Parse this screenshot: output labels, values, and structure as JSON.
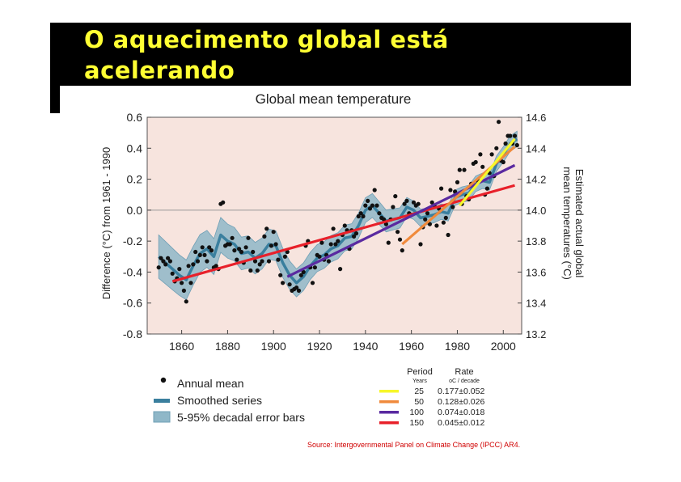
{
  "slide": {
    "title_line1": "O aquecimento global está",
    "title_line2": "acelerando",
    "source": "Source: Intergovernmental Panel on Climate Change (IPCC) AR4."
  },
  "chart_data": {
    "type": "scatter",
    "title": "Global mean temperature",
    "xlabel": "",
    "ylabel": "Difference (°C) from 1961 - 1990",
    "y2label_line1": "Estimated actual global",
    "y2label_line2": "mean temperatures (°C)",
    "xlim": [
      1845,
      2008
    ],
    "ylim": [
      -0.8,
      0.6
    ],
    "y2lim": [
      13.2,
      14.6
    ],
    "x_ticks": [
      1860,
      1880,
      1900,
      1920,
      1940,
      1960,
      1980,
      2000
    ],
    "y_ticks": [
      -0.8,
      -0.6,
      -0.4,
      -0.2,
      0.0,
      0.2,
      0.4,
      0.6
    ],
    "y_tick_labels": [
      "-0.8",
      "-0.6",
      "-0.4",
      "-0.2",
      "0.0",
      "0.2",
      "0.4",
      "0.6"
    ],
    "y2_ticks": [
      13.2,
      13.4,
      13.6,
      13.8,
      14.0,
      14.2,
      14.4,
      14.6
    ],
    "y2_tick_labels": [
      "13.2",
      "13.4",
      "13.6",
      "13.8",
      "14.0",
      "14.2",
      "14.4",
      "14.6"
    ],
    "zero_line": true,
    "colors": {
      "background": "#f7e4de",
      "points": "#111111",
      "smooth": "#3a7f9e",
      "band": "#8fb7c8",
      "band_edge": "#6f9fb5"
    },
    "annual_mean": {
      "name": "Annual mean",
      "x": [
        1850,
        1851,
        1852,
        1853,
        1854,
        1855,
        1856,
        1857,
        1858,
        1859,
        1860,
        1861,
        1862,
        1863,
        1864,
        1865,
        1866,
        1867,
        1868,
        1869,
        1870,
        1871,
        1872,
        1873,
        1874,
        1875,
        1876,
        1877,
        1878,
        1879,
        1880,
        1881,
        1882,
        1883,
        1884,
        1885,
        1886,
        1887,
        1888,
        1889,
        1890,
        1891,
        1892,
        1893,
        1894,
        1895,
        1896,
        1897,
        1898,
        1899,
        1900,
        1901,
        1902,
        1903,
        1904,
        1905,
        1906,
        1907,
        1908,
        1909,
        1910,
        1911,
        1912,
        1913,
        1914,
        1915,
        1916,
        1917,
        1918,
        1919,
        1920,
        1921,
        1922,
        1923,
        1924,
        1925,
        1926,
        1927,
        1928,
        1929,
        1930,
        1931,
        1932,
        1933,
        1934,
        1935,
        1936,
        1937,
        1938,
        1939,
        1940,
        1941,
        1942,
        1943,
        1944,
        1945,
        1946,
        1947,
        1948,
        1949,
        1950,
        1951,
        1952,
        1953,
        1954,
        1955,
        1956,
        1957,
        1958,
        1959,
        1960,
        1961,
        1962,
        1963,
        1964,
        1965,
        1966,
        1967,
        1968,
        1969,
        1970,
        1971,
        1972,
        1973,
        1974,
        1975,
        1976,
        1977,
        1978,
        1979,
        1980,
        1981,
        1982,
        1983,
        1984,
        1985,
        1986,
        1987,
        1988,
        1989,
        1990,
        1991,
        1992,
        1993,
        1994,
        1995,
        1996,
        1997,
        1998,
        1999,
        2000,
        2001,
        2002,
        2003,
        2004,
        2005,
        2006
      ],
      "y": [
        -0.37,
        -0.31,
        -0.33,
        -0.35,
        -0.31,
        -0.33,
        -0.41,
        -0.46,
        -0.44,
        -0.38,
        -0.47,
        -0.52,
        -0.59,
        -0.36,
        -0.47,
        -0.35,
        -0.27,
        -0.33,
        -0.29,
        -0.24,
        -0.29,
        -0.33,
        -0.24,
        -0.26,
        -0.37,
        -0.36,
        -0.38,
        0.04,
        0.05,
        -0.23,
        -0.22,
        -0.22,
        -0.18,
        -0.26,
        -0.32,
        -0.25,
        -0.27,
        -0.34,
        -0.24,
        -0.18,
        -0.39,
        -0.27,
        -0.33,
        -0.39,
        -0.35,
        -0.33,
        -0.17,
        -0.12,
        -0.33,
        -0.23,
        -0.14,
        -0.22,
        -0.32,
        -0.42,
        -0.47,
        -0.3,
        -0.27,
        -0.48,
        -0.52,
        -0.51,
        -0.5,
        -0.52,
        -0.42,
        -0.4,
        -0.23,
        -0.2,
        -0.37,
        -0.47,
        -0.37,
        -0.29,
        -0.3,
        -0.21,
        -0.32,
        -0.29,
        -0.33,
        -0.22,
        -0.12,
        -0.22,
        -0.2,
        -0.38,
        -0.16,
        -0.1,
        -0.13,
        -0.25,
        -0.13,
        -0.17,
        -0.15,
        -0.04,
        -0.02,
        -0.04,
        0.03,
        0.06,
        0.01,
        0.03,
        0.13,
        0.03,
        -0.02,
        -0.05,
        -0.06,
        -0.09,
        -0.21,
        -0.06,
        0.02,
        0.09,
        -0.14,
        -0.19,
        -0.26,
        0.04,
        0.06,
        -0.02,
        -0.03,
        0.05,
        0.03,
        0.04,
        -0.22,
        -0.11,
        -0.06,
        -0.02,
        -0.09,
        0.05,
        0.03,
        -0.1,
        0.01,
        0.14,
        -0.08,
        -0.05,
        -0.16,
        0.13,
        0.02,
        0.12,
        0.18,
        0.26,
        0.04,
        0.26,
        0.09,
        0.07,
        0.17,
        0.3,
        0.31,
        0.19,
        0.36,
        0.28,
        0.1,
        0.14,
        0.24,
        0.36,
        0.22,
        0.4,
        0.57,
        0.32,
        0.31,
        0.43,
        0.48,
        0.48,
        0.43,
        0.48,
        0.42
      ]
    },
    "smoothed": {
      "name": "Smoothed series",
      "x": [
        1850,
        1853,
        1856,
        1859,
        1862,
        1865,
        1868,
        1871,
        1874,
        1877,
        1880,
        1883,
        1886,
        1889,
        1892,
        1895,
        1898,
        1901,
        1904,
        1907,
        1910,
        1913,
        1916,
        1919,
        1922,
        1925,
        1928,
        1931,
        1934,
        1937,
        1940,
        1943,
        1946,
        1949,
        1952,
        1955,
        1958,
        1961,
        1964,
        1967,
        1970,
        1973,
        1976,
        1979,
        1982,
        1985,
        1988,
        1991,
        1994,
        1997,
        2000,
        2003,
        2006
      ],
      "y": [
        -0.3,
        -0.34,
        -0.38,
        -0.42,
        -0.45,
        -0.36,
        -0.28,
        -0.25,
        -0.3,
        -0.16,
        -0.2,
        -0.22,
        -0.28,
        -0.27,
        -0.31,
        -0.28,
        -0.22,
        -0.23,
        -0.34,
        -0.42,
        -0.47,
        -0.43,
        -0.36,
        -0.31,
        -0.29,
        -0.25,
        -0.23,
        -0.18,
        -0.17,
        -0.1,
        0.0,
        0.03,
        -0.02,
        -0.07,
        -0.06,
        -0.05,
        0.02,
        0.0,
        -0.05,
        -0.04,
        -0.03,
        -0.01,
        -0.02,
        0.08,
        0.1,
        0.11,
        0.17,
        0.19,
        0.18,
        0.3,
        0.36,
        0.43,
        0.46
      ]
    },
    "band_halfwidth": {
      "x": [
        1850,
        1880,
        1910,
        1940,
        1970,
        2006
      ],
      "y": [
        0.14,
        0.11,
        0.09,
        0.08,
        0.05,
        0.05
      ]
    },
    "trend_lines": [
      {
        "period": "25",
        "rate": "0.177±0.052",
        "x": [
          1981,
          2005
        ],
        "y": [
          0.03,
          0.46
        ],
        "color": "#f7f72a"
      },
      {
        "period": "50",
        "rate": "0.128±0.026",
        "x": [
          1956,
          2005
        ],
        "y": [
          -0.22,
          0.41
        ],
        "color": "#f08a3c"
      },
      {
        "period": "100",
        "rate": "0.074±0.018",
        "x": [
          1906,
          2005
        ],
        "y": [
          -0.43,
          0.29
        ],
        "color": "#5a2aa0"
      },
      {
        "period": "150",
        "rate": "0.045±0.012",
        "x": [
          1856,
          2005
        ],
        "y": [
          -0.46,
          0.16
        ],
        "color": "#e8202a"
      }
    ],
    "legend": {
      "annual_mean": "Annual mean",
      "smoothed": "Smoothed series",
      "error_bars": "5-95% decadal error bars",
      "period_header": "Period",
      "period_sub": "Years",
      "rate_header": "Rate",
      "rate_sub": "oC / decade"
    }
  }
}
